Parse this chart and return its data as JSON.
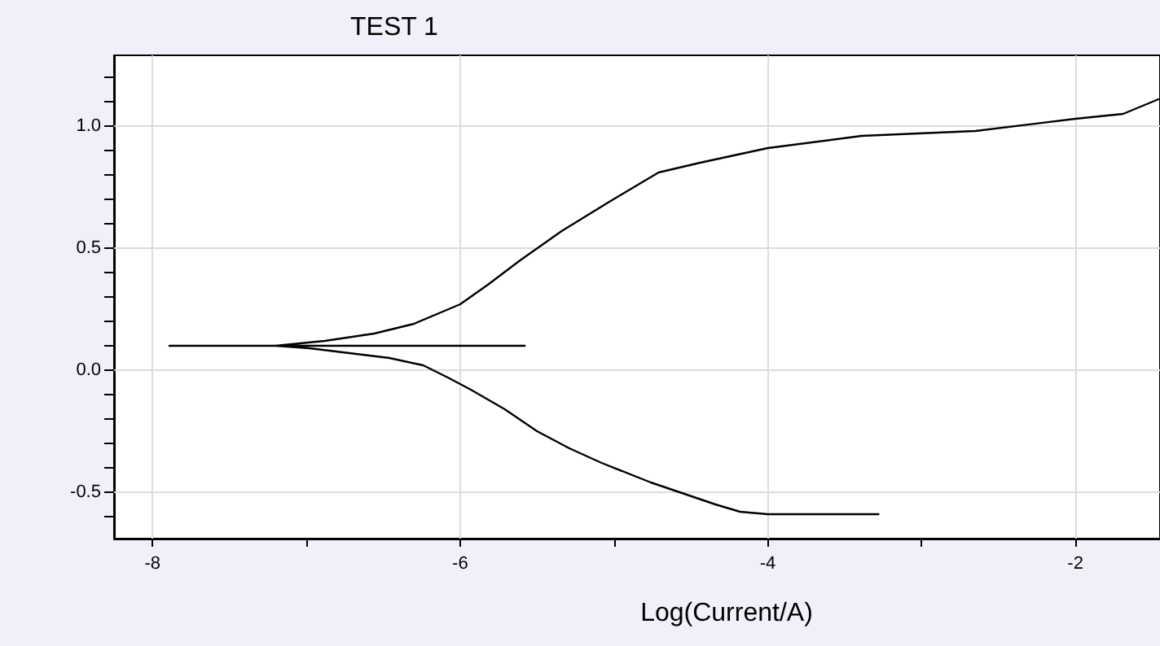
{
  "chart_data": {
    "type": "line",
    "title": "TEST 1",
    "xlabel": "Log(Current/A)",
    "xlim": [
      -8.25,
      -1.45
    ],
    "ylim": [
      -0.69,
      1.29
    ],
    "xticks": [
      -8,
      {
        "value": -7,
        "label": null
      },
      -6,
      {
        "value": -5,
        "label": null
      },
      -4,
      {
        "value": -3,
        "label": null
      },
      -2
    ],
    "yticks": [
      {
        "value": -0.6,
        "label": null
      },
      {
        "value": -0.5,
        "label": "-0.5"
      },
      {
        "value": -0.4,
        "label": null
      },
      {
        "value": -0.3,
        "label": null
      },
      {
        "value": -0.2,
        "label": null
      },
      {
        "value": -0.1,
        "label": null
      },
      {
        "value": 0,
        "label": "0.0"
      },
      {
        "value": 0.1,
        "label": null
      },
      {
        "value": 0.2,
        "label": null
      },
      {
        "value": 0.3,
        "label": null
      },
      {
        "value": 0.4,
        "label": null
      },
      {
        "value": 0.5,
        "label": "0.5"
      },
      {
        "value": 0.6,
        "label": null
      },
      {
        "value": 0.7,
        "label": null
      },
      {
        "value": 0.8,
        "label": null
      },
      {
        "value": 0.9,
        "label": null
      },
      {
        "value": 1.0,
        "label": "1.0"
      },
      {
        "value": 1.1,
        "label": null
      },
      {
        "value": 1.2,
        "label": null
      }
    ],
    "grid": true,
    "marker": "none",
    "line_style": "solid",
    "series": [
      {
        "color": "#000000",
        "x": [
          -3.28,
          -3.81,
          -4.0,
          -4.18,
          -4.34,
          -4.76,
          -5.08,
          -5.29,
          -5.5,
          -5.71,
          -5.93,
          -6.08,
          -6.24,
          -6.46,
          -6.72,
          -6.98,
          -7.2,
          -7.89,
          -5.58,
          -7.2,
          -6.88,
          -6.56,
          -6.3,
          -6.0,
          -5.82,
          -5.61,
          -5.34,
          -5.03,
          -4.71,
          -4.44,
          -4.0,
          -3.39,
          -2.65,
          -2.0,
          -1.69,
          -1.46
        ],
        "values": [
          -0.59,
          -0.59,
          -0.59,
          -0.58,
          -0.55,
          -0.46,
          -0.38,
          -0.32,
          -0.25,
          -0.16,
          -0.08,
          -0.03,
          0.02,
          0.05,
          0.07,
          0.09,
          0.1,
          0.1,
          0.1,
          0.1,
          0.12,
          0.15,
          0.19,
          0.27,
          0.35,
          0.45,
          0.57,
          0.69,
          0.81,
          0.85,
          0.91,
          0.96,
          0.98,
          1.03,
          1.05,
          1.11
        ]
      }
    ]
  }
}
